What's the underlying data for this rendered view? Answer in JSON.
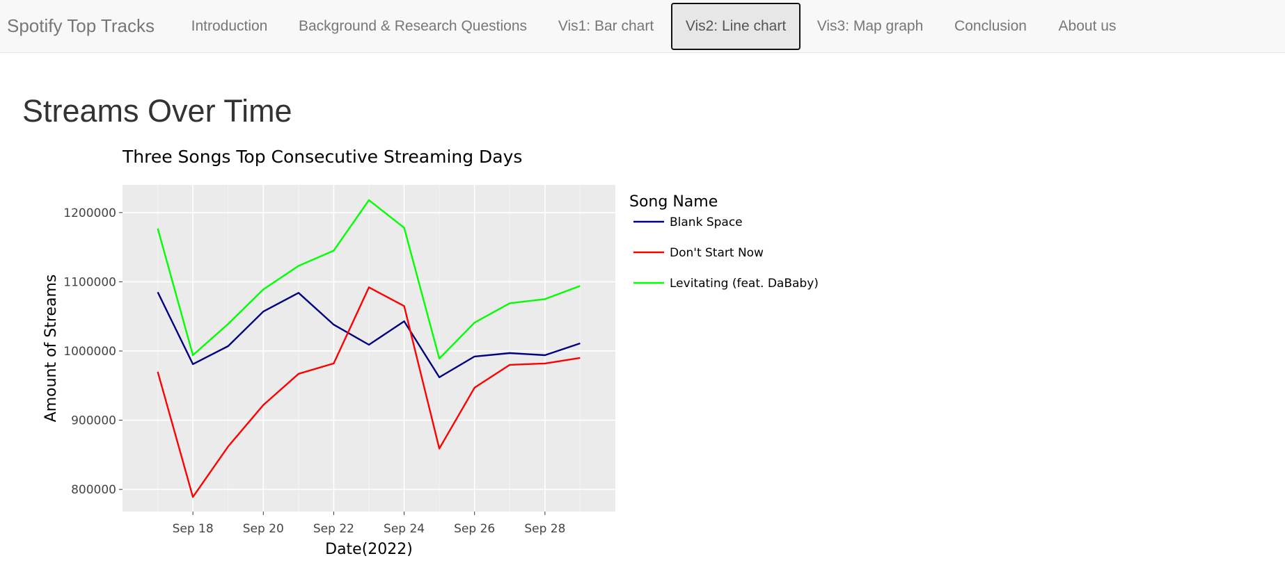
{
  "navbar": {
    "brand": "Spotify Top Tracks",
    "items": [
      {
        "label": "Introduction",
        "active": false
      },
      {
        "label": "Background & Research Questions",
        "active": false
      },
      {
        "label": "Vis1: Bar chart",
        "active": false
      },
      {
        "label": "Vis2: Line chart",
        "active": true
      },
      {
        "label": "Vis3: Map graph",
        "active": false
      },
      {
        "label": "Conclusion",
        "active": false
      },
      {
        "label": "About us",
        "active": false
      }
    ]
  },
  "page": {
    "title": "Streams Over Time"
  },
  "chart_data": {
    "type": "line",
    "title": "Three Songs Top Consecutive Streaming Days",
    "xlabel": "Date(2022)",
    "ylabel": "Amount of Streams",
    "x": [
      "2022-09-17",
      "2022-09-18",
      "2022-09-19",
      "2022-09-20",
      "2022-09-21",
      "2022-09-22",
      "2022-09-23",
      "2022-09-24",
      "2022-09-25",
      "2022-09-26",
      "2022-09-27",
      "2022-09-28",
      "2022-09-29"
    ],
    "x_ticks": [
      "Sep 18",
      "Sep 20",
      "Sep 22",
      "Sep 24",
      "Sep 26",
      "Sep 28"
    ],
    "y_ticks": [
      800000,
      900000,
      1000000,
      1100000,
      1200000
    ],
    "ylim": [
      768000,
      1240000
    ],
    "xlim": [
      "2022-09-16",
      "2022-09-30"
    ],
    "grid": true,
    "legend": {
      "title": "Song Name",
      "placement": "right"
    },
    "background": "#ebebeb",
    "series": [
      {
        "name": "Blank Space",
        "color": "#000080",
        "values": [
          1085000,
          981000,
          1007000,
          1057000,
          1084000,
          1038000,
          1009000,
          1043000,
          962000,
          992000,
          997000,
          994000,
          1011000
        ]
      },
      {
        "name": "Don't Start Now",
        "color": "#ff0000",
        "values": [
          970000,
          789000,
          862000,
          922000,
          967000,
          982000,
          1092000,
          1065000,
          859000,
          947000,
          980000,
          982000,
          990000
        ]
      },
      {
        "name": "Levitating (feat. DaBaby)",
        "color": "#00ff00",
        "values": [
          1177000,
          994000,
          1039000,
          1089000,
          1123000,
          1145000,
          1218000,
          1178000,
          989000,
          1041000,
          1069000,
          1075000,
          1094000
        ]
      }
    ]
  }
}
